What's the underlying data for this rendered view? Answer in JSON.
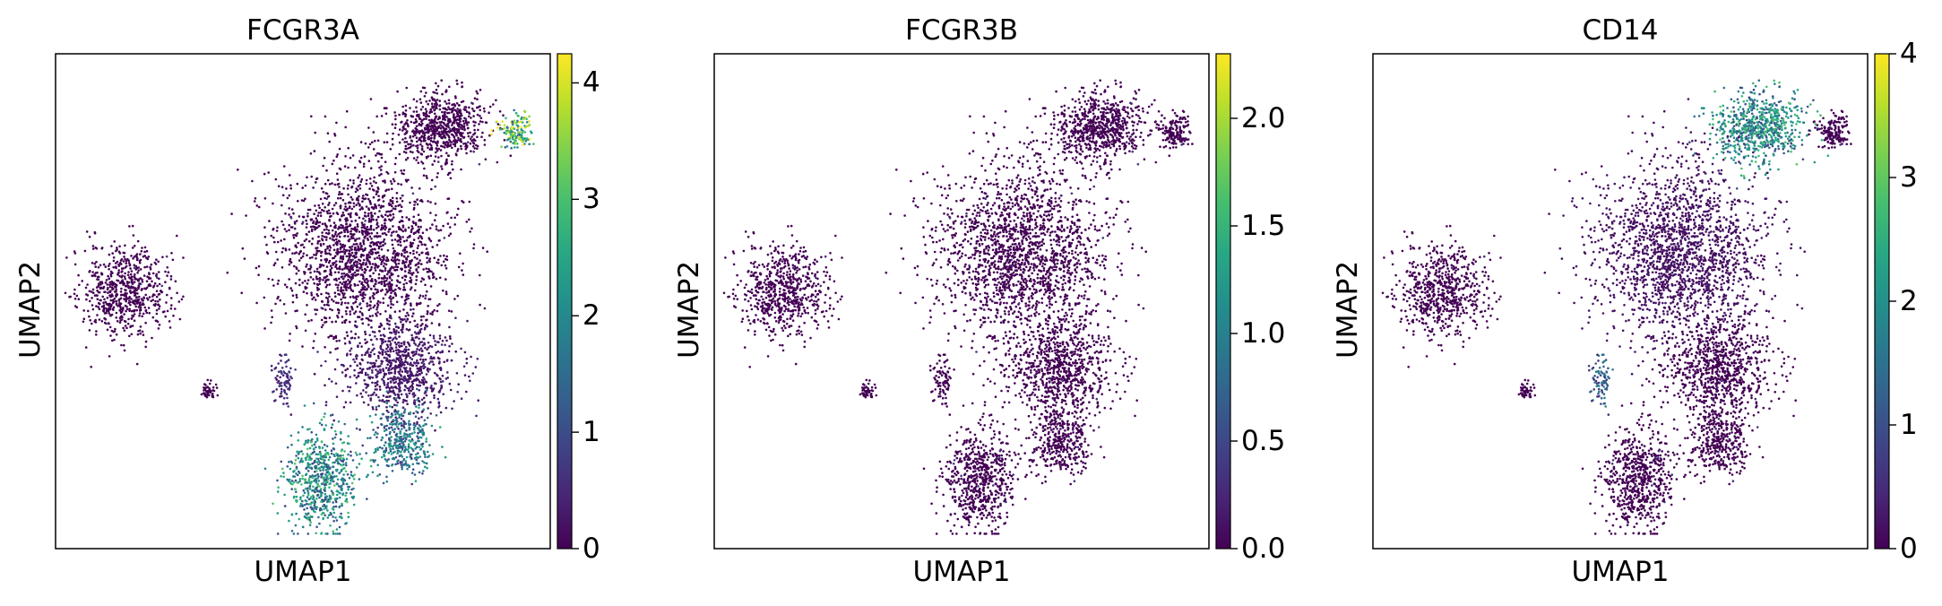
{
  "chart_data": [
    {
      "type": "scatter",
      "title": "FCGR3A",
      "xlabel": "UMAP1",
      "ylabel": "UMAP2",
      "colorbar": {
        "colormap": "viridis",
        "min": 0,
        "max": 4.25,
        "ticks": [
          0,
          1,
          2,
          3,
          4
        ],
        "tick_labels": [
          "0",
          "1",
          "2",
          "3",
          "4"
        ]
      },
      "grid": false,
      "high_expression_regions": [
        "right tip of top cluster",
        "bottom cluster",
        "lower right cluster"
      ]
    },
    {
      "type": "scatter",
      "title": "FCGR3B",
      "xlabel": "UMAP1",
      "ylabel": "UMAP2",
      "colorbar": {
        "colormap": "viridis",
        "min": 0,
        "max": 2.3,
        "ticks": [
          0,
          0.5,
          1,
          1.5,
          2
        ],
        "tick_labels": [
          "0.0",
          "0.5",
          "1.0",
          "1.5",
          "2.0"
        ]
      },
      "grid": false,
      "high_expression_regions": []
    },
    {
      "type": "scatter",
      "title": "CD14",
      "xlabel": "UMAP1",
      "ylabel": "UMAP2",
      "colorbar": {
        "colormap": "viridis",
        "min": 0,
        "max": 4,
        "ticks": [
          0,
          1,
          2,
          3,
          4
        ],
        "tick_labels": [
          "0",
          "1",
          "2",
          "3",
          "4"
        ]
      },
      "grid": false,
      "high_expression_regions": [
        "top cluster",
        "small middle cluster"
      ]
    }
  ],
  "colors": {
    "low": "#440154",
    "mid": "#21918c",
    "high": "#fde725"
  }
}
